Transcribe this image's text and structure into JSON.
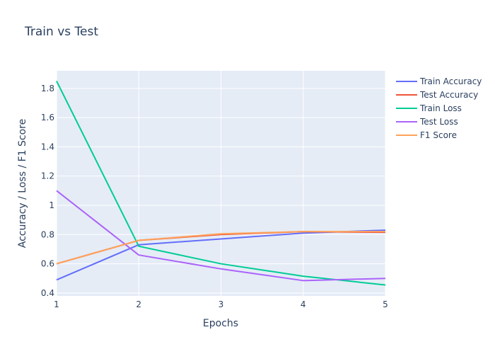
{
  "chart_data": {
    "type": "line",
    "title": "Train vs Test",
    "xlabel": "Epochs",
    "ylabel": "Accuracy / Loss / F1 Score",
    "x": [
      1,
      2,
      3,
      4,
      5
    ],
    "xlim": [
      1,
      5
    ],
    "ylim": [
      0.38,
      1.92
    ],
    "xticks": [
      "1",
      "2",
      "3",
      "4",
      "5"
    ],
    "yticks": [
      "0.4",
      "0.6",
      "0.8",
      "1",
      "1.2",
      "1.4",
      "1.6",
      "1.8"
    ],
    "grid": true,
    "legend_position": "right",
    "series": [
      {
        "name": "Train Accuracy",
        "color": "#636efa",
        "values": [
          0.49,
          0.73,
          0.77,
          0.81,
          0.83
        ]
      },
      {
        "name": "Test Accuracy",
        "color": "#ef553b",
        "values": [
          0.6,
          0.76,
          0.8,
          0.82,
          0.815
        ]
      },
      {
        "name": "Train Loss",
        "color": "#00cc96",
        "values": [
          1.85,
          0.72,
          0.6,
          0.515,
          0.455
        ]
      },
      {
        "name": "Test Loss",
        "color": "#ab63fa",
        "values": [
          1.1,
          0.66,
          0.565,
          0.485,
          0.5
        ]
      },
      {
        "name": "F1 Score",
        "color": "#ffa15a",
        "values": [
          0.6,
          0.76,
          0.805,
          0.82,
          0.82
        ]
      }
    ]
  }
}
